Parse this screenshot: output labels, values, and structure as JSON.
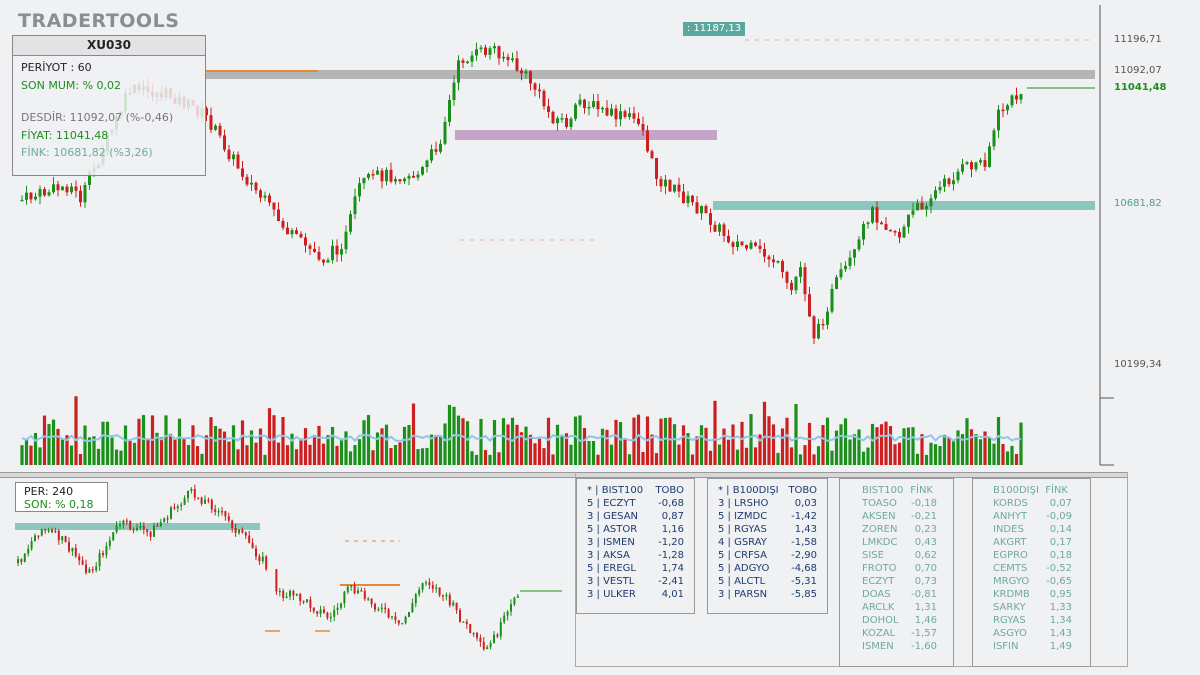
{
  "app": {
    "logo": "TRADERTOOLS"
  },
  "main_chart": {
    "symbol": "XU030",
    "period_label": "PERİYOT : 60",
    "last_candle_label": "SON MUM: % 0,02",
    "resistance_label": "DESDİR: 11092,07 (%-0,46)",
    "price_label": "FİYAT: 11041,48",
    "support_label": "FİNK: 10681,82 (%3,26)",
    "tag_value": ": 11187,13",
    "price_axis": {
      "top": "11196,71",
      "resistance": "11092,07",
      "current": "11041,48",
      "support": "10681,82",
      "bottom": "10199,34"
    },
    "colors": {
      "up": "#1a8f1a",
      "down": "#cc1f1f",
      "resistance": "#b5b5b5",
      "support": "#8cc7bd",
      "zone": "#b58bb8",
      "avg": "#8fc7e6"
    }
  },
  "mini_chart": {
    "period_label": "PER: 240",
    "last_label": "SON: % 0,18"
  },
  "lists": [
    {
      "header": [
        "* | BIST100",
        "TOBO"
      ],
      "rows": [
        [
          "5 | ECZYT",
          "-0,68"
        ],
        [
          "3 | GESAN",
          "0,87"
        ],
        [
          "5 | ASTOR",
          "1,16"
        ],
        [
          "3 | ISMEN",
          "-1,20"
        ],
        [
          "3 | AKSA",
          "-1,28"
        ],
        [
          "5 | EREGL",
          "1,74"
        ],
        [
          "3 | VESTL",
          "-2,41"
        ],
        [
          "3 | ULKER",
          "4,01"
        ]
      ]
    },
    {
      "header": [
        "* | B100DIŞI",
        "TOBO"
      ],
      "rows": [
        [
          "3 | LRSHO",
          "0,03"
        ],
        [
          "5 | IZMDC",
          "-1,42"
        ],
        [
          "5 | RGYAS",
          "1,43"
        ],
        [
          "4 | GSRAY",
          "-1,58"
        ],
        [
          "5 | CRFSA",
          "-2,90"
        ],
        [
          "5 | ADGYO",
          "-4,68"
        ],
        [
          "5 | ALCTL",
          "-5,31"
        ],
        [
          "3 | PARSN",
          "-5,85"
        ]
      ]
    },
    {
      "header": [
        "BIST100",
        "FİNK"
      ],
      "rows": [
        [
          "TOASO",
          "-0,18"
        ],
        [
          "AKSEN",
          "-0,21"
        ],
        [
          "ZOREN",
          "0,23"
        ],
        [
          "LMKDC",
          "0,43"
        ],
        [
          "SISE",
          "0,62"
        ],
        [
          "FROTO",
          "0,70"
        ],
        [
          "ECZYT",
          "0,73"
        ],
        [
          "DOAS",
          "-0,81"
        ],
        [
          "ARCLK",
          "1,31"
        ],
        [
          "DOHOL",
          "1,46"
        ],
        [
          "KOZAL",
          "-1,57"
        ],
        [
          "ISMEN",
          "-1,60"
        ]
      ]
    },
    {
      "header": [
        "B100DIŞI",
        "FİNK"
      ],
      "rows": [
        [
          "KORDS",
          "0,07"
        ],
        [
          "ANHYT",
          "-0,09"
        ],
        [
          "INDES",
          "0,14"
        ],
        [
          "AKGRT",
          "0,17"
        ],
        [
          "EGPRO",
          "0,18"
        ],
        [
          "CEMTS",
          "-0,52"
        ],
        [
          "MRGYO",
          "-0,65"
        ],
        [
          "KRDMB",
          "0,95"
        ],
        [
          "SARKY",
          "1,33"
        ],
        [
          "RGYAS",
          "1,34"
        ],
        [
          "ASGYO",
          "1,43"
        ],
        [
          "ISFIN",
          "1,49"
        ]
      ]
    }
  ]
}
